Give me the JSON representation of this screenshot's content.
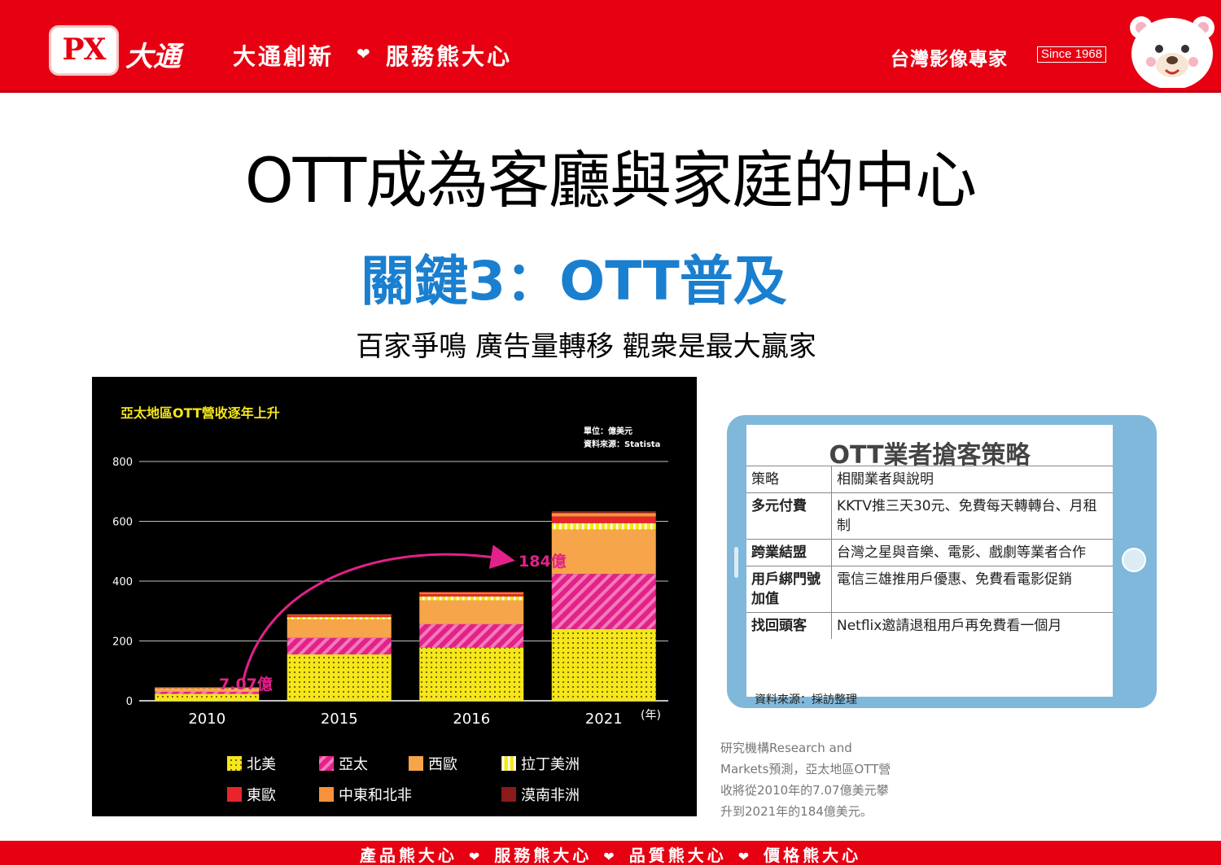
{
  "header": {
    "logo_px": "PX",
    "logo_cn": "大通",
    "slogan_left": "大通創新",
    "slogan_right": "服務熊大心",
    "brand_tag": "台灣影像專家",
    "since": "Since 1968"
  },
  "title": "OTT成為客廳與家庭的中心",
  "subtitle": "關鍵3：OTT普及",
  "tagline": "百家爭鳴  廣告量轉移   觀衆是最大贏家",
  "colors": {
    "brand_red": "#e60012",
    "subtitle_blue": "#1a7fcf",
    "north_america": "#f5e71a",
    "asia_pacific": "#e3218a",
    "western_europe": "#f7a54a",
    "latin_america": "#f5e71a",
    "eastern_europe": "#e8262a",
    "mena": "#f7923a",
    "sub_saharan": "#8b1a1a"
  },
  "chart_data": {
    "type": "bar",
    "stacked": true,
    "title": "亞太地區OTT營收逐年上升",
    "unit_note": "單位：億美元",
    "source_note": "資料來源：Statista",
    "xlabel": "(年)",
    "ylabel": "",
    "categories": [
      "2010",
      "2015",
      "2016",
      "2021"
    ],
    "ylim": [
      0,
      800
    ],
    "yticks": [
      "0",
      "200",
      "400",
      "600",
      "800"
    ],
    "grid": true,
    "series": [
      {
        "name": "北美",
        "values": [
          23,
          155,
          178,
          240
        ]
      },
      {
        "name": "亞太",
        "values": [
          7,
          55,
          78,
          184
        ]
      },
      {
        "name": "西歐",
        "values": [
          9,
          62,
          80,
          148
        ]
      },
      {
        "name": "拉丁美洲",
        "values": [
          3,
          8,
          13,
          22
        ]
      },
      {
        "name": "東歐",
        "values": [
          2,
          5,
          8,
          22
        ]
      },
      {
        "name": "中東和北非",
        "values": [
          1,
          3,
          5,
          12
        ]
      },
      {
        "name": "漠南非洲",
        "values": [
          1,
          2,
          3,
          6
        ]
      }
    ],
    "annotations": {
      "start_label": "7.07億",
      "end_label": "184億"
    },
    "legend_placement": "bottom"
  },
  "strategy_table": {
    "title": "OTT業者搶客策略",
    "headers": [
      "策略",
      "相關業者與說明"
    ],
    "rows": [
      {
        "strategy": "多元付費",
        "desc": "KKTV推三天30元、免費每天轉轉台、月租制"
      },
      {
        "strategy": "跨業結盟",
        "desc": "台灣之星與音樂、電影、戲劇等業者合作"
      },
      {
        "strategy": "用戶綁門號加值",
        "desc": "電信三雄推用戶優惠、免費看電影促銷"
      },
      {
        "strategy": "找回頭客",
        "desc": "Netflix邀請退租用戶再免費看一個月"
      }
    ],
    "source": "資料來源：採訪整理"
  },
  "note": "研究機構Research and Markets預測，亞太地區OTT營收將從2010年的7.07億美元攀升到2021年的184億美元。",
  "footer": {
    "items": [
      "產品熊大心",
      "服務熊大心",
      "品質熊大心",
      "價格熊大心"
    ]
  }
}
